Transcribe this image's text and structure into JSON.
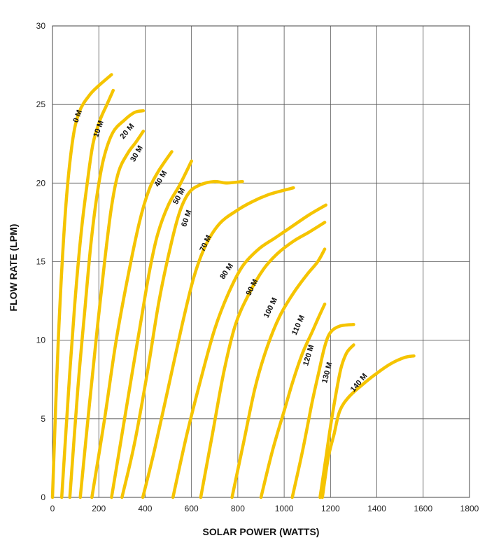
{
  "chart_data": {
    "type": "line",
    "title": "",
    "xlabel": "SOLAR POWER (WATTS)",
    "ylabel": "FLOW RATE (LPM)",
    "xlim": [
      0,
      1800
    ],
    "ylim": [
      0,
      30
    ],
    "x_ticks": [
      "0",
      "200",
      "400",
      "600",
      "800",
      "1000",
      "1200",
      "1400",
      "1600",
      "1800"
    ],
    "y_ticks": [
      "0",
      "5",
      "10",
      "15",
      "20",
      "25",
      "30"
    ],
    "grid": true,
    "line_color": "#F5C400",
    "series": [
      {
        "name": "0 M",
        "points": [
          [
            0,
            0
          ],
          [
            25,
            10
          ],
          [
            55,
            18
          ],
          [
            85,
            22.5
          ],
          [
            115,
            24.5
          ],
          [
            160,
            25.6
          ],
          [
            200,
            26.2
          ],
          [
            255,
            26.9
          ]
        ],
        "label_at": [
          118,
          24.2
        ]
      },
      {
        "name": "10 M",
        "points": [
          [
            40,
            0
          ],
          [
            75,
            8
          ],
          [
            100,
            13
          ],
          [
            125,
            17
          ],
          [
            150,
            20
          ],
          [
            175,
            22.5
          ],
          [
            205,
            24
          ],
          [
            235,
            25
          ],
          [
            262,
            25.9
          ]
        ],
        "label_at": [
          208,
          23.4
        ]
      },
      {
        "name": "20 M",
        "points": [
          [
            75,
            0
          ],
          [
            110,
            7
          ],
          [
            140,
            12
          ],
          [
            165,
            16
          ],
          [
            190,
            19
          ],
          [
            220,
            21.5
          ],
          [
            260,
            23.2
          ],
          [
            310,
            24
          ],
          [
            355,
            24.5
          ],
          [
            392,
            24.6
          ]
        ],
        "label_at": [
          330,
          23.2
        ]
      },
      {
        "name": "30 M",
        "points": [
          [
            120,
            0
          ],
          [
            160,
            6
          ],
          [
            195,
            11
          ],
          [
            225,
            15
          ],
          [
            255,
            18.5
          ],
          [
            285,
            20.7
          ],
          [
            325,
            21.9
          ],
          [
            360,
            22.6
          ],
          [
            392,
            23.3
          ]
        ],
        "label_at": [
          372,
          21.8
        ]
      },
      {
        "name": "40 M",
        "points": [
          [
            170,
            0
          ],
          [
            225,
            5
          ],
          [
            275,
            10
          ],
          [
            325,
            14
          ],
          [
            375,
            17.5
          ],
          [
            415,
            19.5
          ],
          [
            455,
            20.7
          ],
          [
            515,
            22
          ]
        ],
        "label_at": [
          476,
          20.2
        ]
      },
      {
        "name": "50 M",
        "points": [
          [
            255,
            0
          ],
          [
            300,
            4
          ],
          [
            345,
            8
          ],
          [
            385,
            11.5
          ],
          [
            420,
            14.5
          ],
          [
            455,
            16.8
          ],
          [
            500,
            18.6
          ],
          [
            550,
            19.9
          ],
          [
            600,
            21.4
          ]
        ],
        "label_at": [
          555,
          19.1
        ]
      },
      {
        "name": "60 M",
        "points": [
          [
            300,
            0
          ],
          [
            355,
            3.5
          ],
          [
            410,
            8
          ],
          [
            460,
            12.5
          ],
          [
            510,
            16
          ],
          [
            550,
            18.2
          ],
          [
            590,
            19.4
          ],
          [
            640,
            19.9
          ],
          [
            700,
            20.1
          ],
          [
            750,
            20
          ],
          [
            820,
            20.1
          ]
        ],
        "label_at": [
          588,
          17.7
        ]
      },
      {
        "name": "70 M",
        "points": [
          [
            390,
            0
          ],
          [
            440,
            3
          ],
          [
            500,
            7
          ],
          [
            560,
            11
          ],
          [
            610,
            14
          ],
          [
            660,
            16
          ],
          [
            720,
            17.4
          ],
          [
            790,
            18.2
          ],
          [
            860,
            18.8
          ],
          [
            940,
            19.3
          ],
          [
            1040,
            19.7
          ]
        ],
        "label_at": [
          670,
          16.1
        ]
      },
      {
        "name": "80 M",
        "points": [
          [
            520,
            0
          ],
          [
            580,
            4
          ],
          [
            640,
            7.5
          ],
          [
            700,
            10.7
          ],
          [
            760,
            13
          ],
          [
            820,
            14.7
          ],
          [
            890,
            15.8
          ],
          [
            960,
            16.5
          ],
          [
            1030,
            17.2
          ],
          [
            1110,
            18
          ],
          [
            1180,
            18.6
          ]
        ],
        "label_at": [
          760,
          14.3
        ]
      },
      {
        "name": "90 M",
        "points": [
          [
            640,
            0
          ],
          [
            690,
            4
          ],
          [
            740,
            8
          ],
          [
            790,
            11
          ],
          [
            850,
            13
          ],
          [
            910,
            14.5
          ],
          [
            970,
            15.5
          ],
          [
            1040,
            16.3
          ],
          [
            1110,
            16.9
          ],
          [
            1175,
            17.5
          ]
        ],
        "label_at": [
          870,
          13.3
        ]
      },
      {
        "name": "100 M",
        "points": [
          [
            775,
            0
          ],
          [
            825,
            3.5
          ],
          [
            875,
            7
          ],
          [
            925,
            9.5
          ],
          [
            980,
            11.5
          ],
          [
            1040,
            13
          ],
          [
            1100,
            14.2
          ],
          [
            1145,
            15
          ],
          [
            1175,
            15.8
          ]
        ],
        "label_at": [
          950,
          12
        ]
      },
      {
        "name": "110 M",
        "points": [
          [
            900,
            0
          ],
          [
            950,
            3
          ],
          [
            1000,
            5.5
          ],
          [
            1040,
            7.5
          ],
          [
            1080,
            9.2
          ],
          [
            1120,
            10.5
          ],
          [
            1150,
            11.5
          ],
          [
            1175,
            12.3
          ]
        ],
        "label_at": [
          1070,
          10.9
        ]
      },
      {
        "name": "120 M",
        "points": [
          [
            1035,
            0
          ],
          [
            1080,
            3
          ],
          [
            1120,
            6
          ],
          [
            1150,
            8
          ],
          [
            1175,
            9.6
          ],
          [
            1200,
            10.5
          ],
          [
            1240,
            10.9
          ],
          [
            1300,
            11
          ]
        ],
        "label_at": [
          1115,
          9
        ]
      },
      {
        "name": "130 M",
        "points": [
          [
            1155,
            0
          ],
          [
            1180,
            2.5
          ],
          [
            1200,
            4.5
          ],
          [
            1220,
            6.3
          ],
          [
            1245,
            8.2
          ],
          [
            1270,
            9.2
          ],
          [
            1300,
            9.7
          ]
        ],
        "label_at": [
          1195,
          7.9
        ]
      },
      {
        "name": "140 M",
        "points": [
          [
            1165,
            0
          ],
          [
            1190,
            2.5
          ],
          [
            1215,
            4
          ],
          [
            1240,
            5.5
          ],
          [
            1280,
            6.4
          ],
          [
            1340,
            7.2
          ],
          [
            1400,
            7.9
          ],
          [
            1460,
            8.5
          ],
          [
            1520,
            8.9
          ],
          [
            1560,
            9
          ]
        ],
        "label_at": [
          1330,
          7.2
        ]
      }
    ]
  }
}
